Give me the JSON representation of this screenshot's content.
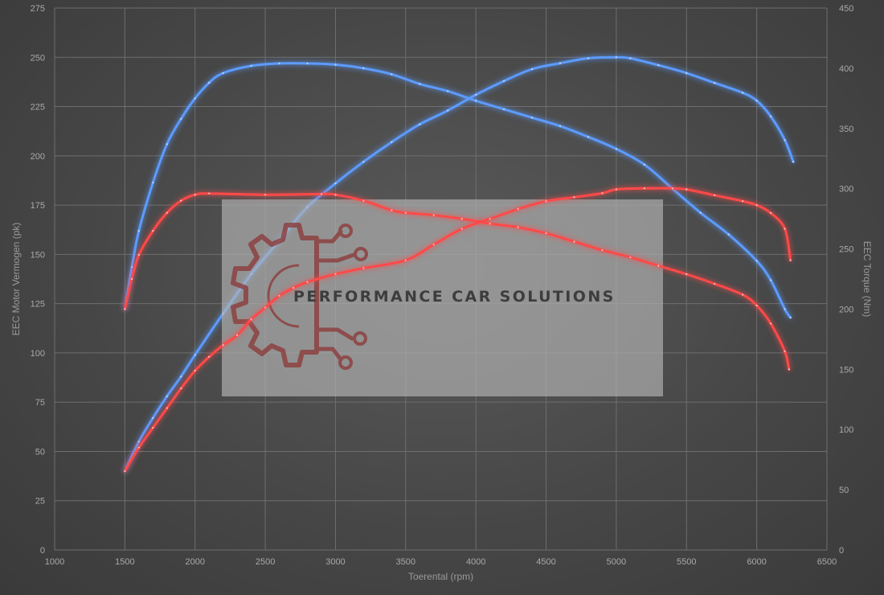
{
  "chart_data": {
    "type": "line",
    "title": "",
    "xlabel": "Toerental (rpm)",
    "ylabel_left": "EEC Motor Vermogen (pk)",
    "ylabel_right": "EEC Torque (Nm)",
    "xlim": [
      1000,
      6500
    ],
    "ylim_left": [
      0,
      275
    ],
    "ylim_right": [
      0,
      450
    ],
    "x_ticks": [
      1000,
      1500,
      2000,
      2500,
      3000,
      3500,
      4000,
      4500,
      5000,
      5500,
      6000,
      6500
    ],
    "y_ticks_left": [
      0,
      25,
      50,
      75,
      100,
      125,
      150,
      175,
      200,
      225,
      250,
      275
    ],
    "y_ticks_right": [
      0,
      50,
      100,
      150,
      200,
      250,
      300,
      350,
      400,
      450
    ],
    "grid": true,
    "series": [
      {
        "axis": "left",
        "color": "#5b9bff",
        "points": [
          [
            1500,
            40
          ],
          [
            1600,
            55
          ],
          [
            1700,
            67
          ],
          [
            1800,
            78
          ],
          [
            1900,
            88
          ],
          [
            2000,
            99
          ],
          [
            2200,
            120
          ],
          [
            2400,
            140
          ],
          [
            2600,
            157
          ],
          [
            2800,
            174
          ],
          [
            3000,
            186
          ],
          [
            3200,
            197
          ],
          [
            3400,
            207
          ],
          [
            3600,
            216
          ],
          [
            3800,
            223
          ],
          [
            4000,
            231
          ],
          [
            4200,
            238
          ],
          [
            4400,
            244
          ],
          [
            4600,
            247
          ],
          [
            4800,
            249.5
          ],
          [
            5000,
            250
          ],
          [
            5100,
            249.5
          ],
          [
            5300,
            246
          ],
          [
            5500,
            242
          ],
          [
            5700,
            237
          ],
          [
            5900,
            232
          ],
          [
            6000,
            228
          ],
          [
            6100,
            220
          ],
          [
            6200,
            208
          ],
          [
            6260,
            197
          ]
        ]
      },
      {
        "axis": "right",
        "color": "#5b9bff",
        "points": [
          [
            1500,
            200
          ],
          [
            1550,
            235
          ],
          [
            1600,
            265
          ],
          [
            1700,
            305
          ],
          [
            1800,
            337
          ],
          [
            1900,
            358
          ],
          [
            2000,
            375
          ],
          [
            2100,
            388
          ],
          [
            2200,
            396
          ],
          [
            2400,
            402
          ],
          [
            2600,
            404
          ],
          [
            2800,
            404
          ],
          [
            3000,
            403
          ],
          [
            3200,
            400
          ],
          [
            3400,
            395
          ],
          [
            3600,
            387
          ],
          [
            3800,
            381
          ],
          [
            4000,
            373
          ],
          [
            4200,
            366
          ],
          [
            4400,
            359
          ],
          [
            4600,
            352
          ],
          [
            4800,
            343
          ],
          [
            5000,
            333
          ],
          [
            5200,
            320
          ],
          [
            5400,
            300
          ],
          [
            5600,
            280
          ],
          [
            5800,
            262
          ],
          [
            6000,
            240
          ],
          [
            6100,
            224
          ],
          [
            6200,
            200
          ],
          [
            6240,
            193
          ]
        ]
      },
      {
        "axis": "left",
        "color": "#ff4a4a",
        "points": [
          [
            1500,
            40
          ],
          [
            1600,
            52
          ],
          [
            1700,
            62
          ],
          [
            1800,
            72
          ],
          [
            1900,
            82
          ],
          [
            2000,
            91
          ],
          [
            2100,
            98
          ],
          [
            2200,
            104
          ],
          [
            2300,
            109
          ],
          [
            2400,
            117
          ],
          [
            2500,
            123
          ],
          [
            2600,
            129
          ],
          [
            2700,
            133
          ],
          [
            2800,
            136
          ],
          [
            3000,
            140
          ],
          [
            3200,
            143
          ],
          [
            3500,
            147
          ],
          [
            3700,
            155
          ],
          [
            3900,
            163
          ],
          [
            4100,
            168
          ],
          [
            4300,
            173
          ],
          [
            4500,
            177
          ],
          [
            4700,
            179
          ],
          [
            4900,
            181
          ],
          [
            5000,
            183
          ],
          [
            5200,
            183.5
          ],
          [
            5400,
            183.5
          ],
          [
            5500,
            183
          ],
          [
            5700,
            180
          ],
          [
            5900,
            177
          ],
          [
            6000,
            175
          ],
          [
            6100,
            171
          ],
          [
            6200,
            163
          ],
          [
            6240,
            147
          ]
        ]
      },
      {
        "axis": "right",
        "color": "#ff4a4a",
        "points": [
          [
            1500,
            200
          ],
          [
            1550,
            225
          ],
          [
            1600,
            245
          ],
          [
            1700,
            265
          ],
          [
            1800,
            280
          ],
          [
            1900,
            290
          ],
          [
            2000,
            295
          ],
          [
            2100,
            296
          ],
          [
            2500,
            295
          ],
          [
            2900,
            295.5
          ],
          [
            3000,
            295
          ],
          [
            3200,
            290
          ],
          [
            3400,
            282
          ],
          [
            3500,
            280
          ],
          [
            3700,
            278
          ],
          [
            3900,
            275
          ],
          [
            4100,
            271
          ],
          [
            4300,
            268
          ],
          [
            4500,
            263
          ],
          [
            4700,
            256
          ],
          [
            4900,
            249
          ],
          [
            5100,
            243
          ],
          [
            5300,
            236
          ],
          [
            5500,
            229
          ],
          [
            5700,
            221
          ],
          [
            5900,
            212
          ],
          [
            6000,
            203
          ],
          [
            6100,
            188
          ],
          [
            6200,
            165
          ],
          [
            6230,
            150
          ]
        ]
      }
    ]
  },
  "watermark": {
    "text": "PERFORMANCE CAR SOLUTIONS",
    "logo_color": "#8c3a3a",
    "panel_color": "#b4b4b4"
  }
}
